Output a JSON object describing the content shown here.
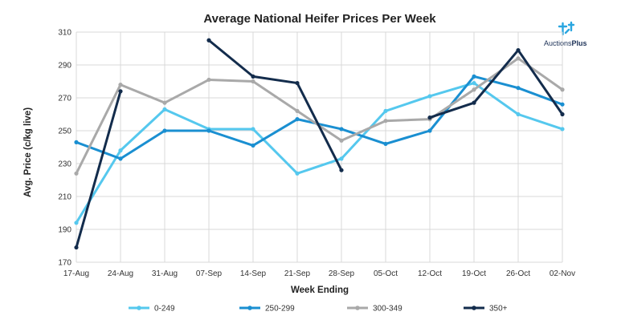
{
  "chart_data": {
    "type": "line",
    "title": "Average National Heifer Prices Per Week",
    "xlabel": "Week Ending",
    "ylabel": "Avg. Price (c/kg live)",
    "categories": [
      "17-Aug",
      "24-Aug",
      "31-Aug",
      "07-Sep",
      "14-Sep",
      "21-Sep",
      "28-Sep",
      "05-Oct",
      "12-Oct",
      "19-Oct",
      "26-Oct",
      "02-Nov"
    ],
    "ylim": [
      170,
      310
    ],
    "yticks": [
      170,
      190,
      210,
      230,
      250,
      270,
      290,
      310
    ],
    "grid": true,
    "legend_position": "bottom",
    "series": [
      {
        "name": "0-249",
        "color": "#55c8ee",
        "values": [
          194,
          238,
          263,
          251,
          251,
          224,
          233,
          262,
          271,
          279,
          260,
          251
        ]
      },
      {
        "name": "250-299",
        "color": "#1a8fd1",
        "values": [
          243,
          233,
          250,
          250,
          241,
          257,
          251,
          242,
          250,
          283,
          276,
          266
        ]
      },
      {
        "name": "300-349",
        "color": "#a9a9a9",
        "values": [
          224,
          278,
          267,
          281,
          280,
          262,
          244,
          256,
          257,
          275,
          294,
          275
        ]
      },
      {
        "name": "350+",
        "color": "#132c4c",
        "values": [
          179,
          274,
          null,
          305,
          283,
          279,
          226,
          null,
          258,
          267,
          299,
          260
        ]
      }
    ]
  },
  "logo": {
    "prefix": "Auctions",
    "suffix": "Plus",
    "color": "#1a2f55",
    "accent": "#2aa6e0"
  }
}
